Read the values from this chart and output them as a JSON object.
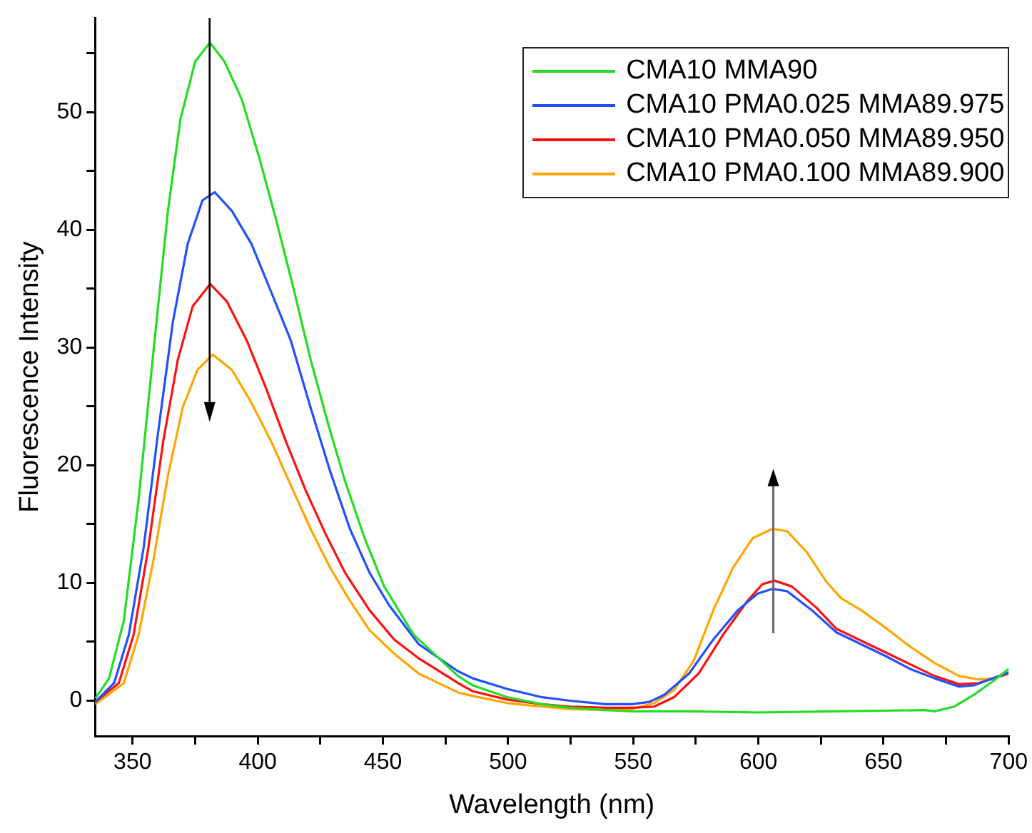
{
  "chart_data": {
    "type": "line",
    "xlabel": "Wavelength (nm)",
    "ylabel": "Fluorescence Intensity",
    "xlim": [
      335,
      700
    ],
    "ylim": [
      -3,
      58
    ],
    "xticks": [
      350,
      {
        "value": 375,
        "label": null
      },
      400,
      {
        "value": 425,
        "label": null
      },
      450,
      {
        "value": 475,
        "label": null
      },
      500,
      {
        "value": 525,
        "label": null
      },
      550,
      {
        "value": 575,
        "label": null
      },
      600,
      {
        "value": 625,
        "label": null
      },
      650,
      {
        "value": 675,
        "label": null
      },
      700
    ],
    "yticks": [
      0,
      {
        "value": 5,
        "label": null
      },
      10,
      {
        "value": 15,
        "label": null
      },
      20,
      {
        "value": 25,
        "label": null
      },
      30,
      {
        "value": 35,
        "label": null
      },
      40,
      {
        "value": 45,
        "label": null
      },
      50,
      {
        "value": 55,
        "label": null
      }
    ],
    "legend": "top right",
    "marker": "none",
    "line_style": "solid",
    "series": [
      {
        "name": "CMA10 MMA90",
        "color": "#22dd22",
        "x": [
          335.1,
          340.6,
          346.5,
          352.4,
          358.2,
          364.1,
          369.1,
          375,
          380.9,
          386.7,
          393.6,
          400.5,
          407.4,
          414.2,
          421.1,
          428,
          434.8,
          442.7,
          450.5,
          462.3,
          480,
          485.9,
          499.6,
          513.4,
          524.7,
          538.9,
          549.6,
          572.3,
          599.7,
          631.2,
          666.5,
          670.4,
          678.3,
          686.1,
          694,
          700
        ],
        "values": [
          0.2,
          1.9,
          6.8,
          17.1,
          29.4,
          41.6,
          49.4,
          54.3,
          55.9,
          54.3,
          51.1,
          46.2,
          40.8,
          35.1,
          29.0,
          23.6,
          18.7,
          13.8,
          9.7,
          5.6,
          2.1,
          1.3,
          0.3,
          -0.3,
          -0.6,
          -0.8,
          -0.9,
          -0.9,
          -1.0,
          -0.9,
          -0.8,
          -0.9,
          -0.5,
          0.5,
          1.7,
          2.7
        ]
      },
      {
        "name": "CMA10 PMA0.025 MMA89.975",
        "color": "#1f4fff",
        "x": [
          335.1,
          342.6,
          348.5,
          354.4,
          360.2,
          366.1,
          372,
          377.9,
          382.8,
          389.7,
          397.5,
          405.4,
          413.2,
          421.1,
          428.9,
          436.8,
          444.6,
          452.5,
          464.3,
          480,
          485.9,
          499.6,
          513.4,
          524.7,
          538.9,
          549.6,
          556.5,
          562.4,
          572.3,
          582,
          591.9,
          599.7,
          605.6,
          611.5,
          621.3,
          631.2,
          641,
          650.8,
          660.6,
          670.4,
          680.2,
          686.1,
          700
        ],
        "values": [
          -0.1,
          1.5,
          5.6,
          13.0,
          22.8,
          32.2,
          38.8,
          42.5,
          43.2,
          41.6,
          38.8,
          34.7,
          30.6,
          24.9,
          19.5,
          14.6,
          10.9,
          8.1,
          4.8,
          2.5,
          1.9,
          1.0,
          0.3,
          0.0,
          -0.3,
          -0.3,
          -0.1,
          0.5,
          2.3,
          5.2,
          7.7,
          9.1,
          9.5,
          9.3,
          7.7,
          5.8,
          4.8,
          3.8,
          2.7,
          1.9,
          1.2,
          1.3,
          2.4
        ]
      },
      {
        "name": "CMA10 PMA0.050 MMA89.950",
        "color": "#ff1010",
        "x": [
          335.1,
          344.5,
          350.4,
          356.3,
          362.2,
          368.1,
          374,
          381,
          387.7,
          395.6,
          403.4,
          411.3,
          419.1,
          427,
          434.8,
          444.6,
          454.5,
          464.3,
          480,
          485.9,
          499.6,
          513.4,
          524.7,
          538.9,
          549.6,
          558.4,
          566.3,
          576.1,
          585.9,
          595.7,
          601.6,
          606.5,
          613.4,
          623.2,
          631.2,
          641,
          650.8,
          660.6,
          670.4,
          680.2,
          688,
          700
        ],
        "values": [
          -0.1,
          1.5,
          5.6,
          13.0,
          22.0,
          29.0,
          33.5,
          35.4,
          33.9,
          30.6,
          26.5,
          22.0,
          17.9,
          14.2,
          10.9,
          7.7,
          5.2,
          3.6,
          1.5,
          0.8,
          0.1,
          -0.3,
          -0.5,
          -0.6,
          -0.6,
          -0.5,
          0.3,
          2.3,
          5.6,
          8.5,
          9.9,
          10.2,
          9.7,
          7.9,
          6.1,
          5.1,
          4.1,
          3.1,
          2.1,
          1.4,
          1.5,
          2.3
        ]
      },
      {
        "name": "CMA10 PMA0.100 MMA89.900",
        "color": "#ffa500",
        "x": [
          335.1,
          346.5,
          352.4,
          358.2,
          364.1,
          370,
          375.9,
          382,
          389.7,
          397.5,
          405.4,
          413.2,
          421.1,
          428.9,
          436.8,
          444.6,
          454.5,
          464.3,
          480,
          485.9,
          499.6,
          513.4,
          524.7,
          538.9,
          549.6,
          558.4,
          566.3,
          574.2,
          582,
          589.9,
          597.7,
          605.6,
          611.5,
          619.4,
          627.2,
          633.1,
          641,
          650.8,
          660.6,
          670.4,
          680.2,
          688,
          693.9,
          700
        ],
        "values": [
          -0.3,
          1.5,
          5.6,
          11.8,
          19.1,
          24.9,
          28.1,
          29.4,
          28.1,
          25.3,
          22.0,
          18.3,
          14.6,
          11.3,
          8.5,
          6.0,
          4.0,
          2.3,
          0.7,
          0.4,
          -0.2,
          -0.5,
          -0.7,
          -0.8,
          -0.7,
          -0.2,
          0.9,
          3.4,
          7.7,
          11.3,
          13.8,
          14.6,
          14.4,
          12.6,
          10.1,
          8.7,
          7.7,
          6.2,
          4.6,
          3.2,
          2.1,
          1.8,
          1.9,
          2.4
        ]
      }
    ]
  }
}
